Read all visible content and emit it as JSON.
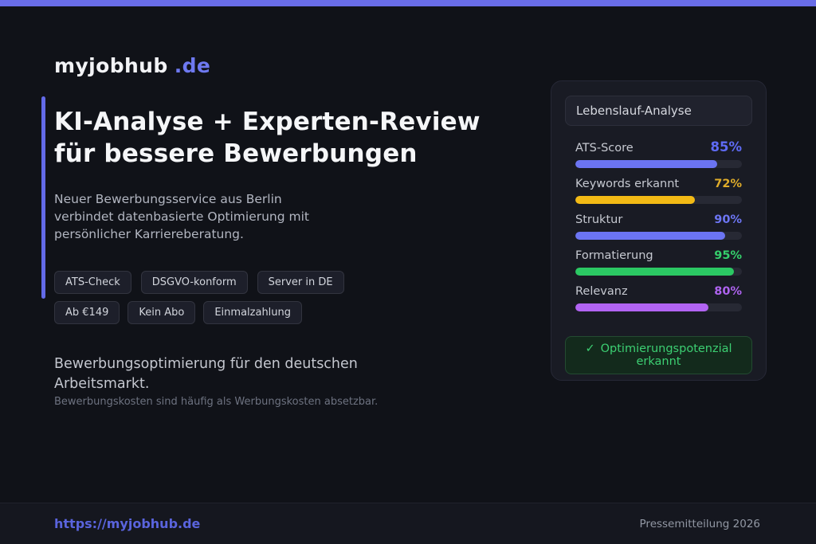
{
  "brand": {
    "name": "myjobhub",
    "tld": ".de"
  },
  "colors": {
    "topbar": "#696de8",
    "accent_bar": "#636ae8",
    "brand_accent": "#6e79f0",
    "footer_link": "#5a64dd",
    "status_green": "#3ccf72"
  },
  "hero": {
    "title_lines": [
      "KI-Analyse + Experten-Review",
      "für bessere Bewerbungen"
    ],
    "subtitle": "Neuer Bewerbungsservice aus Berlin verbindet datenbasierte Optimierung mit persönlicher Karriereberatung.",
    "badges_row1": [
      "ATS-Check",
      "DSGVO-konform",
      "Server in DE"
    ],
    "badges_row2": [
      "Ab €149",
      "Kein Abo",
      "Einmalzahlung"
    ]
  },
  "outro": {
    "text": "Bewerbungsoptimierung für den deutschen Arbeitsmarkt.",
    "note": "Bewerbungskosten sind häufig als Werbungskosten absetzbar."
  },
  "card": {
    "title": "Lebenslauf-Analyse",
    "metrics": [
      {
        "label": "ATS-Score",
        "value": "85%",
        "pct": 85,
        "color": "#6b74f2",
        "value_color": "#5f6bf5"
      },
      {
        "label": "Keywords erkannt",
        "value": "72%",
        "pct": 72,
        "color": "#f3ba15",
        "value_color": "#e0ad2a"
      },
      {
        "label": "Struktur",
        "value": "90%",
        "pct": 90,
        "color": "#6b74f2",
        "value_color": "#6d76f4"
      },
      {
        "label": "Formatierung",
        "value": "95%",
        "pct": 95,
        "color": "#2bc863",
        "value_color": "#35d06c"
      },
      {
        "label": "Relevanz",
        "value": "80%",
        "pct": 80,
        "color": "#b264f3",
        "value_color": "#ae63ef"
      }
    ],
    "status_icon": "✓",
    "status_text": "Optimierungspotenzial erkannt"
  },
  "footer": {
    "link": "https://myjobhub.de",
    "right": "Pressemitteilung 2026"
  }
}
